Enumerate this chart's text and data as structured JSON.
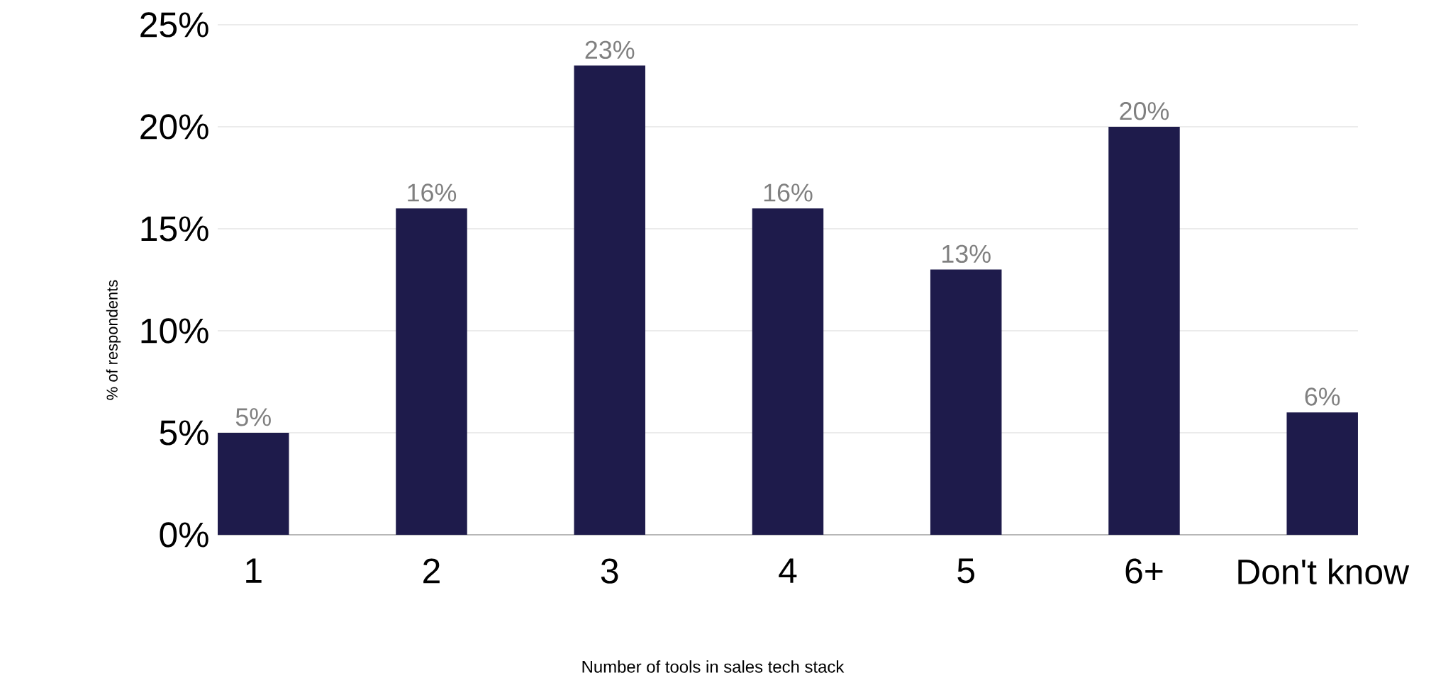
{
  "chart_data": {
    "type": "bar",
    "xlabel": "Number of tools in sales tech stack",
    "ylabel": "% of respondents",
    "categories": [
      "1",
      "2",
      "3",
      "4",
      "5",
      "6+",
      "Don't know"
    ],
    "values": [
      5,
      16,
      23,
      16,
      13,
      20,
      6
    ],
    "color": "#1e1b4b",
    "ylim": [
      0,
      25
    ],
    "yticks": [
      {
        "value": 0,
        "label": "0%"
      },
      {
        "value": 5,
        "label": "5%"
      },
      {
        "value": 10,
        "label": "10%"
      },
      {
        "value": 15,
        "label": "15%"
      },
      {
        "value": 20,
        "label": "20%"
      },
      {
        "value": 25,
        "label": "25%"
      }
    ],
    "value_labels": [
      "5%",
      "16%",
      "23%",
      "16%",
      "13%",
      "20%",
      "6%"
    ],
    "grid": "y"
  }
}
